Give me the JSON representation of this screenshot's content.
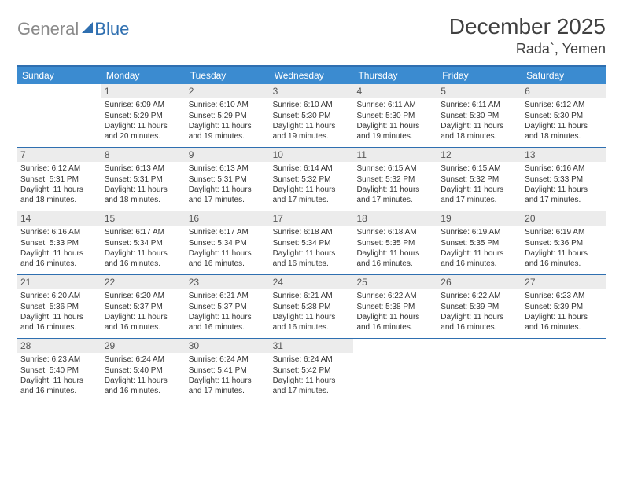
{
  "brand": {
    "a": "General",
    "b": "Blue"
  },
  "title": "December 2025",
  "location": "Rada`, Yemen",
  "colors": {
    "header_bg": "#3b8bd0",
    "border": "#2f6fb0",
    "daynum_bg": "#ececec",
    "text": "#333333",
    "logo_gray": "#8a8a8a"
  },
  "dow": [
    "Sunday",
    "Monday",
    "Tuesday",
    "Wednesday",
    "Thursday",
    "Friday",
    "Saturday"
  ],
  "weeks": [
    [
      null,
      {
        "n": "1",
        "sr": "6:09 AM",
        "ss": "5:29 PM",
        "dl": "11 hours and 20 minutes."
      },
      {
        "n": "2",
        "sr": "6:10 AM",
        "ss": "5:29 PM",
        "dl": "11 hours and 19 minutes."
      },
      {
        "n": "3",
        "sr": "6:10 AM",
        "ss": "5:30 PM",
        "dl": "11 hours and 19 minutes."
      },
      {
        "n": "4",
        "sr": "6:11 AM",
        "ss": "5:30 PM",
        "dl": "11 hours and 19 minutes."
      },
      {
        "n": "5",
        "sr": "6:11 AM",
        "ss": "5:30 PM",
        "dl": "11 hours and 18 minutes."
      },
      {
        "n": "6",
        "sr": "6:12 AM",
        "ss": "5:30 PM",
        "dl": "11 hours and 18 minutes."
      }
    ],
    [
      {
        "n": "7",
        "sr": "6:12 AM",
        "ss": "5:31 PM",
        "dl": "11 hours and 18 minutes."
      },
      {
        "n": "8",
        "sr": "6:13 AM",
        "ss": "5:31 PM",
        "dl": "11 hours and 18 minutes."
      },
      {
        "n": "9",
        "sr": "6:13 AM",
        "ss": "5:31 PM",
        "dl": "11 hours and 17 minutes."
      },
      {
        "n": "10",
        "sr": "6:14 AM",
        "ss": "5:32 PM",
        "dl": "11 hours and 17 minutes."
      },
      {
        "n": "11",
        "sr": "6:15 AM",
        "ss": "5:32 PM",
        "dl": "11 hours and 17 minutes."
      },
      {
        "n": "12",
        "sr": "6:15 AM",
        "ss": "5:32 PM",
        "dl": "11 hours and 17 minutes."
      },
      {
        "n": "13",
        "sr": "6:16 AM",
        "ss": "5:33 PM",
        "dl": "11 hours and 17 minutes."
      }
    ],
    [
      {
        "n": "14",
        "sr": "6:16 AM",
        "ss": "5:33 PM",
        "dl": "11 hours and 16 minutes."
      },
      {
        "n": "15",
        "sr": "6:17 AM",
        "ss": "5:34 PM",
        "dl": "11 hours and 16 minutes."
      },
      {
        "n": "16",
        "sr": "6:17 AM",
        "ss": "5:34 PM",
        "dl": "11 hours and 16 minutes."
      },
      {
        "n": "17",
        "sr": "6:18 AM",
        "ss": "5:34 PM",
        "dl": "11 hours and 16 minutes."
      },
      {
        "n": "18",
        "sr": "6:18 AM",
        "ss": "5:35 PM",
        "dl": "11 hours and 16 minutes."
      },
      {
        "n": "19",
        "sr": "6:19 AM",
        "ss": "5:35 PM",
        "dl": "11 hours and 16 minutes."
      },
      {
        "n": "20",
        "sr": "6:19 AM",
        "ss": "5:36 PM",
        "dl": "11 hours and 16 minutes."
      }
    ],
    [
      {
        "n": "21",
        "sr": "6:20 AM",
        "ss": "5:36 PM",
        "dl": "11 hours and 16 minutes."
      },
      {
        "n": "22",
        "sr": "6:20 AM",
        "ss": "5:37 PM",
        "dl": "11 hours and 16 minutes."
      },
      {
        "n": "23",
        "sr": "6:21 AM",
        "ss": "5:37 PM",
        "dl": "11 hours and 16 minutes."
      },
      {
        "n": "24",
        "sr": "6:21 AM",
        "ss": "5:38 PM",
        "dl": "11 hours and 16 minutes."
      },
      {
        "n": "25",
        "sr": "6:22 AM",
        "ss": "5:38 PM",
        "dl": "11 hours and 16 minutes."
      },
      {
        "n": "26",
        "sr": "6:22 AM",
        "ss": "5:39 PM",
        "dl": "11 hours and 16 minutes."
      },
      {
        "n": "27",
        "sr": "6:23 AM",
        "ss": "5:39 PM",
        "dl": "11 hours and 16 minutes."
      }
    ],
    [
      {
        "n": "28",
        "sr": "6:23 AM",
        "ss": "5:40 PM",
        "dl": "11 hours and 16 minutes."
      },
      {
        "n": "29",
        "sr": "6:24 AM",
        "ss": "5:40 PM",
        "dl": "11 hours and 16 minutes."
      },
      {
        "n": "30",
        "sr": "6:24 AM",
        "ss": "5:41 PM",
        "dl": "11 hours and 17 minutes."
      },
      {
        "n": "31",
        "sr": "6:24 AM",
        "ss": "5:42 PM",
        "dl": "11 hours and 17 minutes."
      },
      null,
      null,
      null
    ]
  ],
  "labels": {
    "sunrise": "Sunrise:",
    "sunset": "Sunset:",
    "daylight": "Daylight:"
  }
}
